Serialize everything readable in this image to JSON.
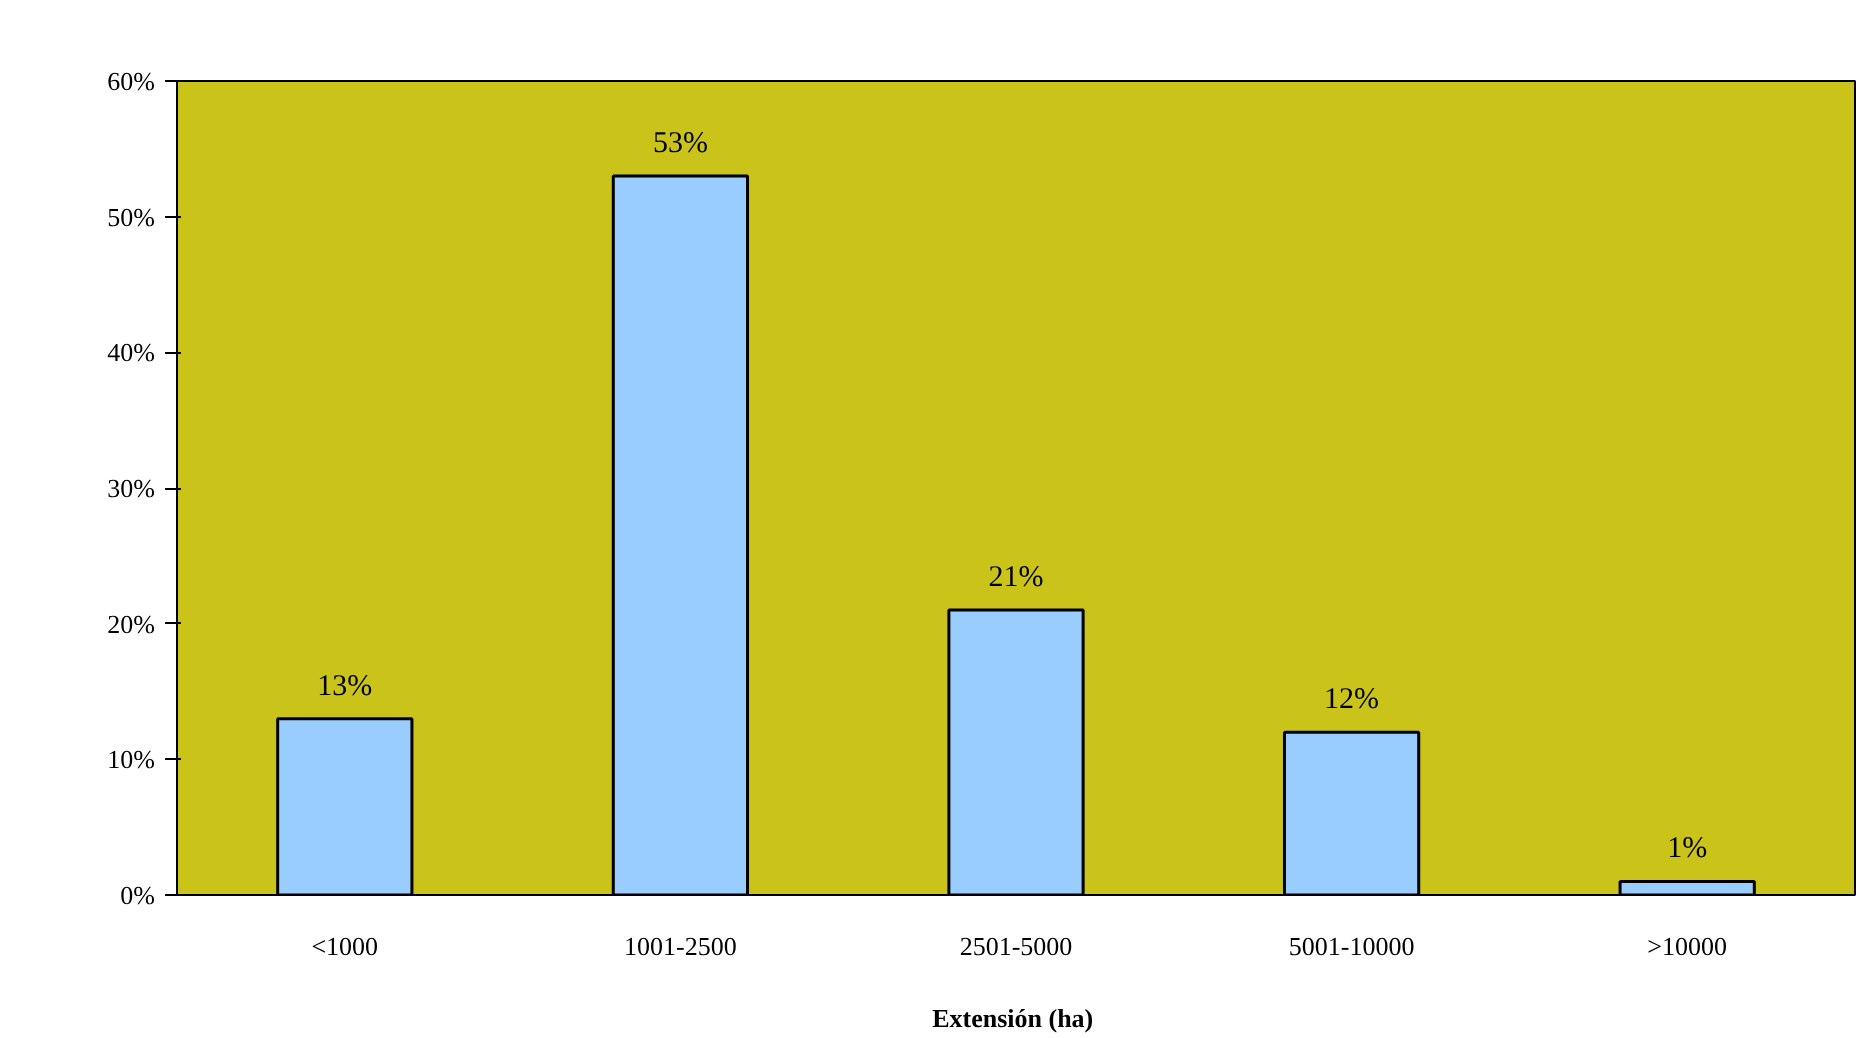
{
  "chart_data": {
    "type": "bar",
    "xlabel": "Extensión  (ha)",
    "categories": [
      "<1000",
      "1001-2500",
      "2501-5000",
      "5001-10000",
      ">10000"
    ],
    "series": [
      {
        "color": "#99ccff",
        "values": [
          13,
          53,
          21,
          12,
          1
        ]
      }
    ],
    "value_labels": [
      "13%",
      "53%",
      "21%",
      "12%",
      "1%"
    ],
    "ylim": [
      0,
      60
    ],
    "yticks": [
      {
        "value": 0,
        "label": "0%"
      },
      {
        "value": 10,
        "label": "10%"
      },
      {
        "value": 20,
        "label": "20%"
      },
      {
        "value": 30,
        "label": "30%"
      },
      {
        "value": 40,
        "label": "40%"
      },
      {
        "value": 50,
        "label": "50%"
      },
      {
        "value": 60,
        "label": "60%"
      }
    ],
    "grid": false
  }
}
